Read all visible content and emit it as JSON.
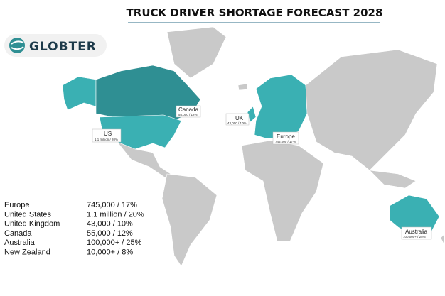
{
  "header": {
    "title": "TRUCK DRIVER SHORTAGE FORECAST 2028"
  },
  "logo": {
    "text": "GLOBTER"
  },
  "map_labels": [
    {
      "name": "Canada",
      "value": "55,000 / 12%"
    },
    {
      "name": "US",
      "value": "1.1 million / 20%"
    },
    {
      "name": "UK",
      "value": "43,000 / 10%"
    },
    {
      "name": "Europe",
      "value": "745,000 / 17%"
    },
    {
      "name": "Australia",
      "value": "100,000+ / 25%"
    }
  ],
  "table": {
    "rows": [
      [
        "Europe",
        "745,000 / 17%"
      ],
      [
        "United States",
        "1.1 million / 20%"
      ],
      [
        "United Kingdom",
        "43,000 / 10%"
      ],
      [
        "Canada",
        "55,000 / 12%"
      ],
      [
        "Australia",
        "100,000+ / 25%"
      ],
      [
        "New Zealand",
        "10,000+ / 8%"
      ]
    ]
  }
}
